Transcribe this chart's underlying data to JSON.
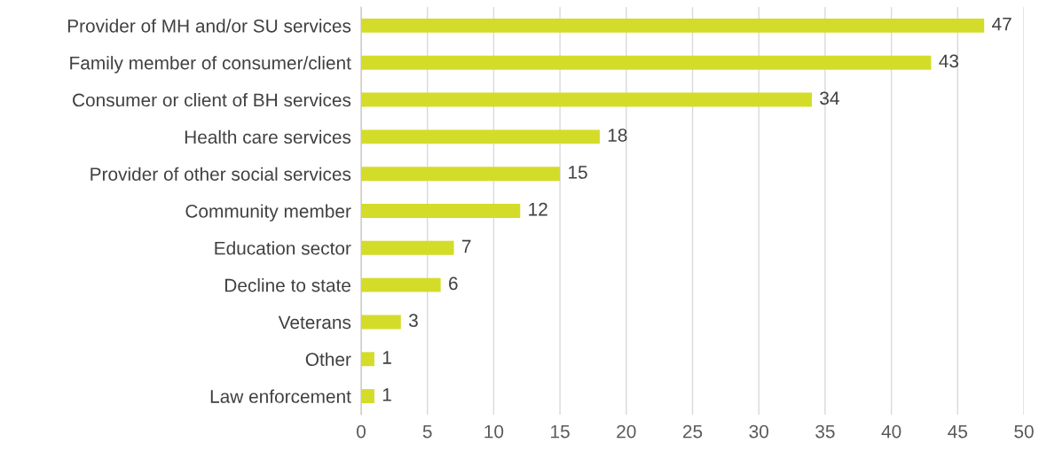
{
  "chart_data": {
    "type": "bar",
    "orientation": "horizontal",
    "categories": [
      "Provider of MH and/or SU services",
      "Family member of consumer/client",
      "Consumer or client of BH services",
      "Health care services",
      "Provider of other social services",
      "Community member",
      "Education sector",
      "Decline to state",
      "Veterans",
      "Other",
      "Law enforcement"
    ],
    "values": [
      47,
      43,
      34,
      18,
      15,
      12,
      7,
      6,
      3,
      1,
      1
    ],
    "color": "#d4dc2a",
    "xlim": [
      0,
      50
    ],
    "xticks": [
      0,
      5,
      10,
      15,
      20,
      25,
      30,
      35,
      40,
      45,
      50
    ],
    "grid": "x",
    "data_labels": true
  }
}
